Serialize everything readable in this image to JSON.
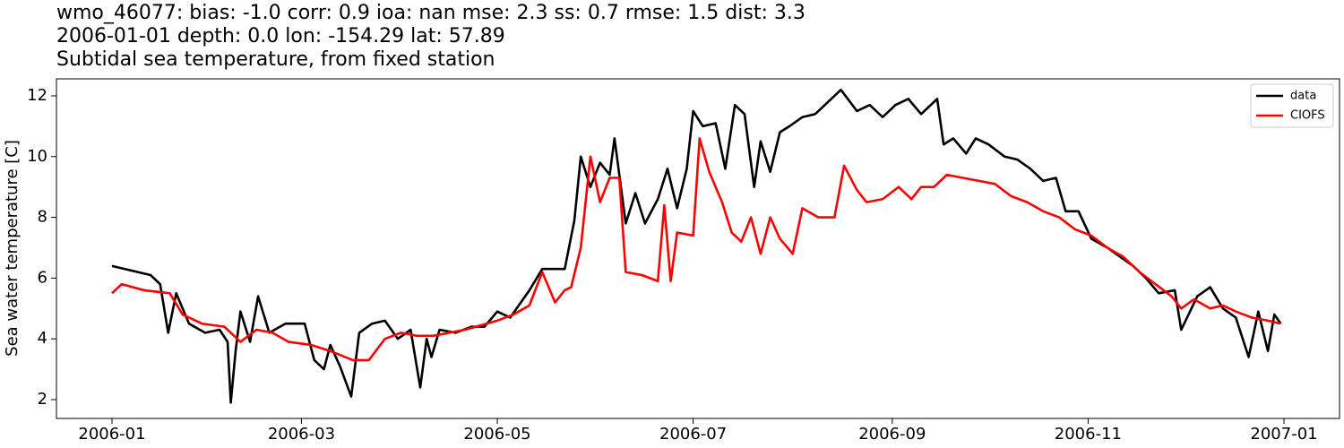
{
  "chart_data": {
    "type": "line",
    "title_lines": [
      "wmo_46077: bias: -1.0  corr: 0.9  ioa: nan  mse: 2.3  ss: 0.7  rmse: 1.5  dist: 3.3",
      "2006-01-01 depth: 0.0 lon: -154.29 lat: 57.89",
      "Subtidal sea temperature, from fixed station"
    ],
    "ylabel": "Sea water temperature [C]",
    "xlim": [
      -17.3,
      382.3
    ],
    "xticks": [
      {
        "value": 0,
        "label": "2006-01"
      },
      {
        "value": 59,
        "label": "2006-03"
      },
      {
        "value": 120,
        "label": "2006-05"
      },
      {
        "value": 181,
        "label": "2006-07"
      },
      {
        "value": 243,
        "label": "2006-09"
      },
      {
        "value": 304,
        "label": "2006-11"
      },
      {
        "value": 365,
        "label": "2007-01"
      }
    ],
    "ylim": [
      1.38,
      12.56
    ],
    "yticks": [
      2,
      4,
      6,
      8,
      10,
      12
    ],
    "legend": "upper right",
    "series": [
      {
        "name": "data",
        "color": "#000000",
        "x": [
          0,
          4,
          8,
          12,
          15,
          17.5,
          20,
          24,
          29,
          33.5,
          36,
          37,
          38.5,
          40,
          43,
          45.5,
          49,
          54,
          60,
          63,
          66,
          68,
          71,
          74.5,
          77,
          81,
          85,
          89,
          93,
          96,
          98,
          99.5,
          102,
          107,
          112,
          116,
          120,
          124,
          130,
          134,
          138,
          141,
          144,
          146,
          149,
          152,
          155,
          156.5,
          160,
          163,
          166,
          170,
          173,
          176,
          179,
          181,
          184,
          188,
          191,
          194,
          197,
          200,
          202,
          205,
          208,
          211,
          215,
          219,
          223,
          227,
          232,
          236,
          240,
          244,
          248,
          252,
          257,
          259,
          262,
          266,
          269,
          273,
          278,
          282,
          286,
          290,
          294,
          297,
          301,
          305,
          310,
          314,
          318,
          322,
          326,
          331,
          333,
          338,
          342,
          346,
          350,
          354,
          357,
          360,
          362,
          364
        ],
        "values": [
          6.4,
          6.3,
          6.2,
          6.1,
          5.8,
          4.2,
          5.5,
          4.5,
          4.2,
          4.3,
          3.9,
          1.9,
          3.6,
          4.9,
          3.9,
          5.4,
          4.2,
          4.5,
          4.5,
          3.3,
          3.0,
          3.8,
          3.1,
          2.1,
          4.2,
          4.5,
          4.6,
          4.0,
          4.3,
          2.4,
          4.0,
          3.4,
          4.3,
          4.2,
          4.4,
          4.4,
          4.9,
          4.7,
          5.6,
          6.3,
          6.3,
          6.3,
          7.9,
          10.0,
          9.0,
          9.8,
          9.4,
          10.6,
          7.8,
          8.8,
          7.8,
          8.6,
          9.6,
          8.3,
          9.6,
          11.5,
          11.0,
          11.1,
          9.6,
          11.7,
          11.4,
          9.0,
          10.5,
          9.5,
          10.8,
          11.0,
          11.3,
          11.4,
          11.8,
          12.2,
          11.5,
          11.7,
          11.3,
          11.7,
          11.9,
          11.4,
          11.9,
          10.4,
          10.6,
          10.1,
          10.6,
          10.4,
          10.0,
          9.9,
          9.6,
          9.2,
          9.3,
          8.2,
          8.2,
          7.3,
          7.0,
          6.7,
          6.4,
          6.0,
          5.5,
          5.6,
          4.3,
          5.4,
          5.7,
          5.0,
          4.7,
          3.4,
          4.9,
          3.6,
          4.8,
          4.5
        ]
      },
      {
        "name": "CIOFS",
        "color": "#ff0000",
        "x": [
          0,
          3,
          10,
          18,
          22,
          28,
          35,
          40,
          45,
          50,
          55,
          62,
          68,
          75,
          80,
          85,
          90,
          95,
          100,
          110,
          120,
          125,
          130,
          134,
          138,
          141,
          143,
          146,
          149,
          152,
          155,
          158,
          160,
          165,
          170,
          172,
          174,
          176,
          181,
          183,
          186,
          190,
          193,
          196,
          199,
          202,
          205,
          208,
          212,
          215,
          220,
          225,
          228,
          232,
          235,
          240,
          245,
          249,
          252,
          256,
          260,
          265,
          270,
          275,
          280,
          285,
          290,
          295,
          300,
          305,
          310,
          315,
          320,
          325,
          330,
          333,
          337,
          342,
          346,
          350,
          355,
          360,
          364
        ],
        "values": [
          5.5,
          5.8,
          5.6,
          5.5,
          4.8,
          4.5,
          4.4,
          3.9,
          4.3,
          4.2,
          3.9,
          3.8,
          3.6,
          3.3,
          3.3,
          4.0,
          4.2,
          4.1,
          4.1,
          4.3,
          4.6,
          4.8,
          5.1,
          6.2,
          5.2,
          5.6,
          5.7,
          7.0,
          10.0,
          8.5,
          9.3,
          9.3,
          6.2,
          6.1,
          5.9,
          8.4,
          5.9,
          7.5,
          7.4,
          10.6,
          9.5,
          8.5,
          7.5,
          7.2,
          8.0,
          6.8,
          8.0,
          7.3,
          6.8,
          8.3,
          8.0,
          8.0,
          9.7,
          8.9,
          8.5,
          8.6,
          9.0,
          8.6,
          9.0,
          9.0,
          9.4,
          9.3,
          9.2,
          9.1,
          8.7,
          8.5,
          8.2,
          8.0,
          7.6,
          7.4,
          7.0,
          6.7,
          6.2,
          5.8,
          5.4,
          5.0,
          5.3,
          5.0,
          5.1,
          4.9,
          4.7,
          4.6,
          4.5
        ]
      }
    ]
  }
}
